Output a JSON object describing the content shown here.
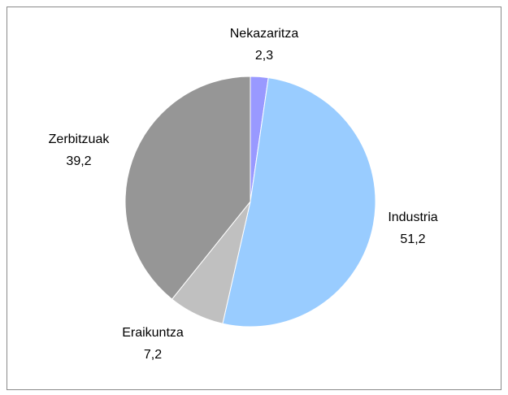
{
  "chart_data": {
    "type": "pie",
    "categories": [
      "Nekazaritza",
      "Industria",
      "Eraikuntza",
      "Zerbitzuak"
    ],
    "values": [
      2.3,
      51.2,
      7.2,
      39.2
    ],
    "value_labels": [
      "2,3",
      "51,2",
      "7,2",
      "39,2"
    ],
    "colors": [
      "#9999ff",
      "#99ccff",
      "#c0c0c0",
      "#969696"
    ]
  }
}
